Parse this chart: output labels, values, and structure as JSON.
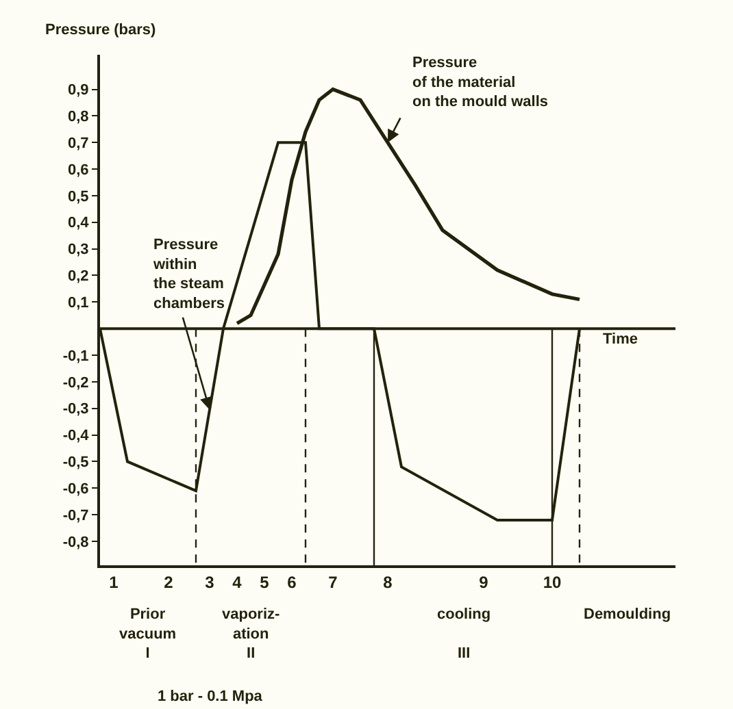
{
  "chart_data": {
    "type": "line",
    "ylabel": "Pressure (bars)",
    "xlabel": "Time",
    "categories": [
      null,
      "1",
      null,
      null,
      null,
      "2",
      null,
      null,
      "3",
      null,
      "4",
      null,
      "5",
      null,
      "6",
      null,
      null,
      "7",
      null,
      null,
      null,
      "8",
      null,
      null,
      null,
      null,
      null,
      null,
      "9",
      null,
      null,
      null,
      null,
      "10",
      null,
      null,
      null,
      null,
      null,
      null,
      null,
      null,
      null
    ],
    "ylim": [
      -0.89,
      1.03
    ],
    "yticks": [
      {
        "value": -0.8,
        "label": "-0,8"
      },
      {
        "value": -0.7,
        "label": "-0,7"
      },
      {
        "value": -0.6,
        "label": "-0,6"
      },
      {
        "value": -0.5,
        "label": "-0,5"
      },
      {
        "value": -0.4,
        "label": "-0,4"
      },
      {
        "value": -0.3,
        "label": "-0,3"
      },
      {
        "value": -0.2,
        "label": "-0,2"
      },
      {
        "value": -0.1,
        "label": "-0,1"
      },
      {
        "value": 0.1,
        "label": "0,1"
      },
      {
        "value": 0.2,
        "label": "0,2"
      },
      {
        "value": 0.3,
        "label": "0,3"
      },
      {
        "value": 0.4,
        "label": "0,4"
      },
      {
        "value": 0.5,
        "label": "0,5"
      },
      {
        "value": 0.6,
        "label": "0,6"
      },
      {
        "value": 0.7,
        "label": "0,7"
      },
      {
        "value": 0.8,
        "label": "0,8"
      },
      {
        "value": 0.9,
        "label": "0,9"
      }
    ],
    "grid": false,
    "legend": false,
    "marker": "none",
    "line_style": "solid",
    "series": [
      {
        "name": "Pressure\nwithin\nthe steam\nchambers",
        "color": "#23230c",
        "values": [
          0,
          null,
          -0.5,
          null,
          null,
          null,
          null,
          -0.61,
          null,
          0,
          null,
          null,
          null,
          0.7,
          null,
          0.7,
          0,
          null,
          null,
          null,
          0,
          null,
          -0.52,
          null,
          null,
          null,
          null,
          null,
          null,
          -0.72,
          null,
          null,
          null,
          -0.72,
          null,
          0,
          null,
          null,
          null,
          null,
          null,
          null,
          null
        ]
      },
      {
        "name": "Pressure\nof the material\non the mould walls",
        "color": "#23230c",
        "values": [
          null,
          null,
          null,
          null,
          null,
          null,
          null,
          null,
          null,
          null,
          0.02,
          0.05,
          null,
          0.28,
          0.56,
          0.74,
          0.86,
          0.9,
          null,
          0.86,
          null,
          null,
          null,
          0.54,
          null,
          0.37,
          null,
          null,
          null,
          0.22,
          null,
          null,
          null,
          0.13,
          null,
          0.11,
          null,
          null,
          null,
          null,
          null,
          null,
          null
        ]
      }
    ],
    "annotations": [
      "Prior\nvacuum\nI",
      "vaporiz-\nation\nII",
      "cooling\n\nIII",
      "Demoulding",
      "1 bar - 0.1 Mpa"
    ]
  }
}
